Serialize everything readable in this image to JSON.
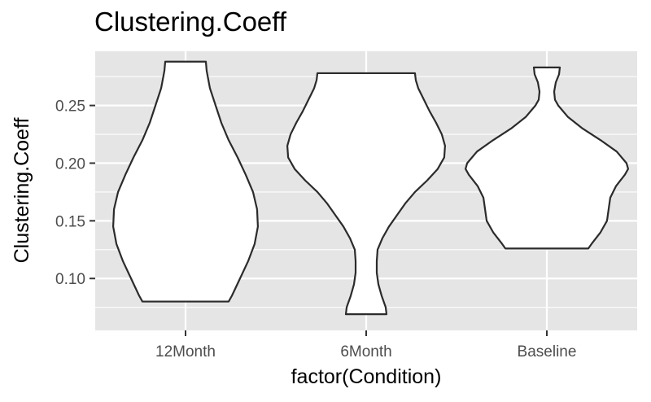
{
  "chart_data": {
    "type": "violin",
    "title": "Clustering.Coeff",
    "xlabel": "factor(Condition)",
    "ylabel": "Clustering.Coeff",
    "categories": [
      "12Month",
      "6Month",
      "Baseline"
    ],
    "ylim": [
      0.055,
      0.297
    ],
    "yticks": [
      0.1,
      0.15,
      0.2,
      0.25
    ],
    "ytick_labels": [
      "0.10",
      "0.15",
      "0.20",
      "0.25"
    ],
    "grid": true,
    "panel_background": "#e5e5e5",
    "violins": [
      {
        "category": "12Month",
        "min": 0.08,
        "max": 0.288,
        "density_profile": [
          [
            0.08,
            0.53
          ],
          [
            0.085,
            0.57
          ],
          [
            0.1,
            0.67
          ],
          [
            0.115,
            0.77
          ],
          [
            0.13,
            0.85
          ],
          [
            0.145,
            0.89
          ],
          [
            0.16,
            0.88
          ],
          [
            0.175,
            0.83
          ],
          [
            0.19,
            0.74
          ],
          [
            0.205,
            0.64
          ],
          [
            0.22,
            0.53
          ],
          [
            0.235,
            0.44
          ],
          [
            0.25,
            0.37
          ],
          [
            0.265,
            0.3
          ],
          [
            0.28,
            0.26
          ],
          [
            0.288,
            0.25
          ]
        ]
      },
      {
        "category": "6Month",
        "min": 0.069,
        "max": 0.278,
        "density_profile": [
          [
            0.069,
            0.25
          ],
          [
            0.075,
            0.24
          ],
          [
            0.085,
            0.19
          ],
          [
            0.095,
            0.15
          ],
          [
            0.105,
            0.13
          ],
          [
            0.115,
            0.13
          ],
          [
            0.125,
            0.14
          ],
          [
            0.135,
            0.2
          ],
          [
            0.145,
            0.28
          ],
          [
            0.155,
            0.38
          ],
          [
            0.165,
            0.48
          ],
          [
            0.175,
            0.6
          ],
          [
            0.185,
            0.75
          ],
          [
            0.195,
            0.88
          ],
          [
            0.205,
            0.96
          ],
          [
            0.215,
            0.97
          ],
          [
            0.225,
            0.93
          ],
          [
            0.235,
            0.86
          ],
          [
            0.245,
            0.78
          ],
          [
            0.255,
            0.71
          ],
          [
            0.265,
            0.64
          ],
          [
            0.272,
            0.61
          ],
          [
            0.278,
            0.6
          ]
        ]
      },
      {
        "category": "Baseline",
        "min": 0.126,
        "max": 0.283,
        "density_profile": [
          [
            0.126,
            0.51
          ],
          [
            0.13,
            0.55
          ],
          [
            0.14,
            0.66
          ],
          [
            0.15,
            0.74
          ],
          [
            0.16,
            0.76
          ],
          [
            0.17,
            0.78
          ],
          [
            0.18,
            0.85
          ],
          [
            0.19,
            0.96
          ],
          [
            0.195,
            1.0
          ],
          [
            0.2,
            0.98
          ],
          [
            0.21,
            0.86
          ],
          [
            0.22,
            0.66
          ],
          [
            0.23,
            0.44
          ],
          [
            0.24,
            0.26
          ],
          [
            0.25,
            0.14
          ],
          [
            0.255,
            0.1
          ],
          [
            0.262,
            0.09
          ],
          [
            0.27,
            0.11
          ],
          [
            0.277,
            0.15
          ],
          [
            0.283,
            0.16
          ]
        ]
      }
    ]
  }
}
